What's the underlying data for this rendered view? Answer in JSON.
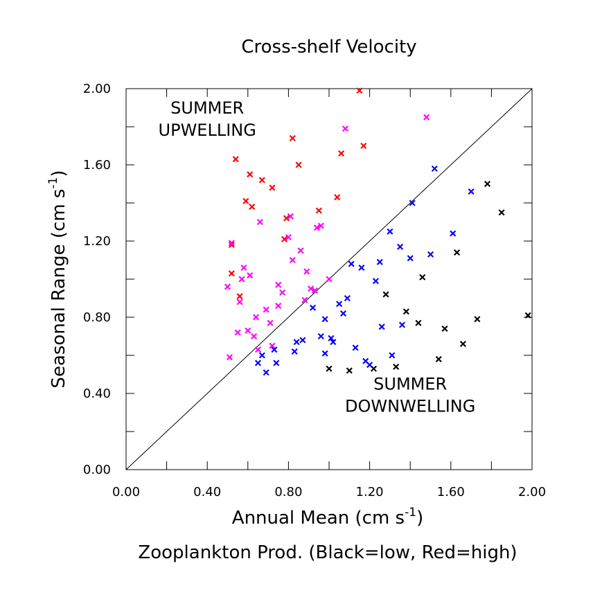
{
  "chart_data": {
    "type": "scatter",
    "title": "Cross-shelf Velocity",
    "xlabel": "Annual Mean (cm s",
    "xlabel_sup": "-1",
    "xlabel_close": ")",
    "ylabel": "Seasonal Range (cm s",
    "ylabel_sup": "-1",
    "ylabel_close": ")",
    "caption": "Zooplankton Prod. (Black=low, Red=high)",
    "xlim": [
      0,
      2.0
    ],
    "ylim": [
      0,
      2.0
    ],
    "xticks": [
      "0.00",
      "0.40",
      "0.80",
      "1.20",
      "1.60",
      "2.00"
    ],
    "yticks": [
      "0.00",
      "0.40",
      "0.80",
      "1.20",
      "1.60",
      "2.00"
    ],
    "xtick_values": [
      0,
      0.4,
      0.8,
      1.2,
      1.6,
      2.0
    ],
    "ytick_values": [
      0,
      0.4,
      0.8,
      1.2,
      1.6,
      2.0
    ],
    "minor_step": 0.2,
    "grid": false,
    "reference_line": [
      [
        0,
        0
      ],
      [
        2.0,
        2.0
      ]
    ],
    "annotations": [
      {
        "lines": [
          "SUMMER",
          "UPWELLING"
        ],
        "x": 0.4,
        "y": 1.87
      },
      {
        "lines": [
          "SUMMER",
          "DOWNWELLING"
        ],
        "x": 1.4,
        "y": 0.42
      }
    ],
    "series": [
      {
        "color": "#ff0000",
        "points": [
          [
            1.15,
            1.99
          ],
          [
            0.54,
            1.63
          ],
          [
            0.61,
            1.55
          ],
          [
            0.62,
            1.38
          ],
          [
            0.67,
            1.52
          ],
          [
            0.72,
            1.48
          ],
          [
            0.59,
            1.41
          ],
          [
            0.52,
            1.18
          ],
          [
            0.52,
            1.03
          ],
          [
            0.56,
            0.91
          ],
          [
            0.78,
            1.21
          ],
          [
            0.79,
            1.32
          ],
          [
            0.82,
            1.74
          ],
          [
            0.85,
            1.6
          ],
          [
            0.95,
            1.36
          ],
          [
            1.04,
            1.43
          ],
          [
            1.06,
            1.66
          ],
          [
            1.17,
            1.7
          ]
        ]
      },
      {
        "color": "#ff00ff",
        "points": [
          [
            1.48,
            1.85
          ],
          [
            1.08,
            1.79
          ],
          [
            0.52,
            1.19
          ],
          [
            0.5,
            0.96
          ],
          [
            0.51,
            0.59
          ],
          [
            0.55,
            0.72
          ],
          [
            0.56,
            0.88
          ],
          [
            0.57,
            1.0
          ],
          [
            0.58,
            1.06
          ],
          [
            0.6,
            0.73
          ],
          [
            0.61,
            1.02
          ],
          [
            0.63,
            0.7
          ],
          [
            0.64,
            0.8
          ],
          [
            0.65,
            0.63
          ],
          [
            0.66,
            1.3
          ],
          [
            0.69,
            0.84
          ],
          [
            0.71,
            0.77
          ],
          [
            0.72,
            0.65
          ],
          [
            0.75,
            0.86
          ],
          [
            0.75,
            0.97
          ],
          [
            0.77,
            0.93
          ],
          [
            0.8,
            1.22
          ],
          [
            0.81,
            1.33
          ],
          [
            0.82,
            1.1
          ],
          [
            0.86,
            1.15
          ],
          [
            0.88,
            0.89
          ],
          [
            0.89,
            1.04
          ],
          [
            0.91,
            0.95
          ],
          [
            0.93,
            0.94
          ],
          [
            0.94,
            1.27
          ],
          [
            0.96,
            1.28
          ],
          [
            1.0,
            1.0
          ]
        ]
      },
      {
        "color": "#0000ff",
        "points": [
          [
            1.52,
            1.58
          ],
          [
            1.41,
            1.4
          ],
          [
            1.7,
            1.46
          ],
          [
            1.61,
            1.24
          ],
          [
            1.3,
            1.25
          ],
          [
            1.35,
            1.17
          ],
          [
            1.4,
            1.11
          ],
          [
            1.5,
            1.13
          ],
          [
            1.11,
            1.08
          ],
          [
            1.16,
            1.06
          ],
          [
            1.25,
            1.09
          ],
          [
            1.23,
            0.99
          ],
          [
            1.09,
            0.9
          ],
          [
            1.05,
            0.87
          ],
          [
            1.07,
            0.82
          ],
          [
            0.92,
            0.85
          ],
          [
            0.98,
            0.79
          ],
          [
            1.26,
            0.75
          ],
          [
            1.36,
            0.76
          ],
          [
            0.96,
            0.7
          ],
          [
            1.01,
            0.69
          ],
          [
            1.02,
            0.67
          ],
          [
            0.87,
            0.68
          ],
          [
            0.84,
            0.67
          ],
          [
            0.73,
            0.63
          ],
          [
            0.67,
            0.6
          ],
          [
            0.65,
            0.56
          ],
          [
            0.74,
            0.56
          ],
          [
            0.69,
            0.51
          ],
          [
            0.83,
            0.62
          ],
          [
            0.98,
            0.61
          ],
          [
            1.13,
            0.64
          ],
          [
            1.18,
            0.57
          ],
          [
            1.2,
            0.55
          ],
          [
            1.31,
            0.6
          ]
        ]
      },
      {
        "color": "#000000",
        "points": [
          [
            1.78,
            1.5
          ],
          [
            1.85,
            1.35
          ],
          [
            1.63,
            1.14
          ],
          [
            1.46,
            1.01
          ],
          [
            1.28,
            0.92
          ],
          [
            1.38,
            0.83
          ],
          [
            1.44,
            0.77
          ],
          [
            1.57,
            0.74
          ],
          [
            1.73,
            0.79
          ],
          [
            1.98,
            0.81
          ],
          [
            1.66,
            0.66
          ],
          [
            1.54,
            0.58
          ],
          [
            1.33,
            0.54
          ],
          [
            1.22,
            0.53
          ],
          [
            1.1,
            0.52
          ],
          [
            1.0,
            0.53
          ]
        ]
      }
    ]
  }
}
